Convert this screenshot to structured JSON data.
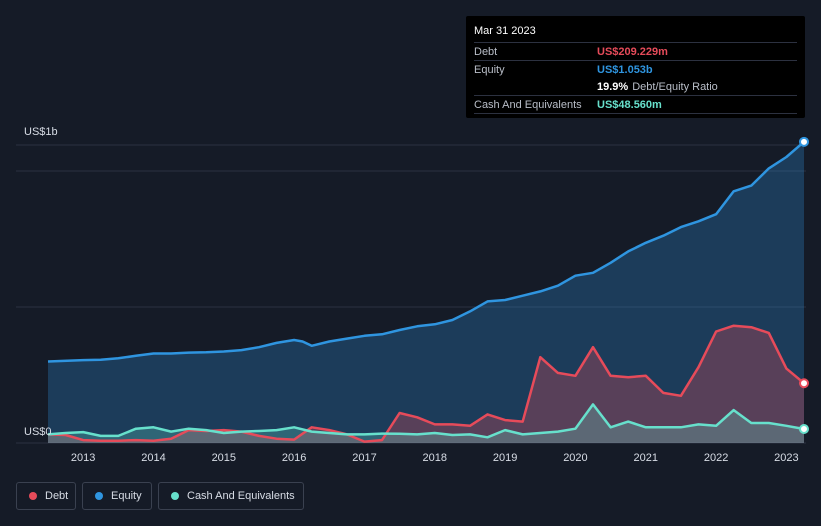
{
  "tooltip": {
    "date": "Mar 31 2023",
    "debt_label": "Debt",
    "debt_value": "US$209.229m",
    "equity_label": "Equity",
    "equity_value": "US$1.053b",
    "ratio_value": "19.9%",
    "ratio_label": "Debt/Equity Ratio",
    "cash_label": "Cash And Equivalents",
    "cash_value": "US$48.560m"
  },
  "legend": {
    "debt": "Debt",
    "equity": "Equity",
    "cash": "Cash And Equivalents"
  },
  "colors": {
    "background": "#151b27",
    "debt": "#e64b5a",
    "equity": "#2f95e0",
    "cash": "#67e0cc",
    "grid": "#2a3140"
  },
  "chart_data": {
    "type": "area",
    "y_unit": "US$ millions",
    "ylim": [
      0,
      1100
    ],
    "y_ticks": [
      {
        "value": 1000,
        "label": "US$1b"
      },
      {
        "value": 0,
        "label": "US$0"
      }
    ],
    "xlim": [
      2012.5,
      2023.25
    ],
    "x_ticks": [
      2013,
      2014,
      2015,
      2016,
      2017,
      2018,
      2019,
      2020,
      2021,
      2022,
      2023
    ],
    "x_tick_labels": [
      "2013",
      "2014",
      "2015",
      "2016",
      "2017",
      "2018",
      "2019",
      "2020",
      "2021",
      "2022",
      "2023"
    ],
    "grid": true,
    "legend_position": "bottom-left",
    "series": [
      {
        "name": "Equity",
        "points": [
          [
            2012.5,
            285
          ],
          [
            2013.0,
            290
          ],
          [
            2013.25,
            291
          ],
          [
            2013.5,
            296
          ],
          [
            2013.75,
            305
          ],
          [
            2014.0,
            313
          ],
          [
            2014.25,
            313
          ],
          [
            2014.5,
            316
          ],
          [
            2014.75,
            317
          ],
          [
            2015.0,
            320
          ],
          [
            2015.25,
            325
          ],
          [
            2015.5,
            335
          ],
          [
            2015.75,
            350
          ],
          [
            2016.0,
            360
          ],
          [
            2016.12,
            355
          ],
          [
            2016.25,
            340
          ],
          [
            2016.5,
            355
          ],
          [
            2016.75,
            365
          ],
          [
            2017.0,
            375
          ],
          [
            2017.25,
            380
          ],
          [
            2017.5,
            395
          ],
          [
            2017.75,
            408
          ],
          [
            2018.0,
            415
          ],
          [
            2018.25,
            430
          ],
          [
            2018.5,
            460
          ],
          [
            2018.75,
            495
          ],
          [
            2019.0,
            500
          ],
          [
            2019.25,
            515
          ],
          [
            2019.5,
            530
          ],
          [
            2019.75,
            550
          ],
          [
            2020.0,
            585
          ],
          [
            2020.25,
            595
          ],
          [
            2020.5,
            630
          ],
          [
            2020.75,
            670
          ],
          [
            2021.0,
            700
          ],
          [
            2021.25,
            725
          ],
          [
            2021.5,
            755
          ],
          [
            2021.75,
            775
          ],
          [
            2022.0,
            800
          ],
          [
            2022.25,
            880
          ],
          [
            2022.5,
            900
          ],
          [
            2022.75,
            960
          ],
          [
            2023.0,
            1000
          ],
          [
            2023.25,
            1053
          ]
        ]
      },
      {
        "name": "Debt",
        "points": [
          [
            2012.5,
            30
          ],
          [
            2012.75,
            28
          ],
          [
            2013.0,
            10
          ],
          [
            2013.25,
            8
          ],
          [
            2013.5,
            8
          ],
          [
            2013.75,
            10
          ],
          [
            2014.0,
            8
          ],
          [
            2014.25,
            15
          ],
          [
            2014.5,
            45
          ],
          [
            2014.75,
            42
          ],
          [
            2015.0,
            45
          ],
          [
            2015.25,
            40
          ],
          [
            2015.5,
            25
          ],
          [
            2015.75,
            15
          ],
          [
            2016.0,
            12
          ],
          [
            2016.25,
            55
          ],
          [
            2016.5,
            45
          ],
          [
            2016.75,
            30
          ],
          [
            2017.0,
            5
          ],
          [
            2017.25,
            10
          ],
          [
            2017.5,
            105
          ],
          [
            2017.75,
            90
          ],
          [
            2018.0,
            65
          ],
          [
            2018.25,
            65
          ],
          [
            2018.5,
            60
          ],
          [
            2018.75,
            100
          ],
          [
            2019.0,
            80
          ],
          [
            2019.25,
            75
          ],
          [
            2019.5,
            300
          ],
          [
            2019.75,
            245
          ],
          [
            2020.0,
            235
          ],
          [
            2020.25,
            335
          ],
          [
            2020.5,
            235
          ],
          [
            2020.75,
            230
          ],
          [
            2021.0,
            235
          ],
          [
            2021.25,
            175
          ],
          [
            2021.5,
            165
          ],
          [
            2021.75,
            265
          ],
          [
            2022.0,
            390
          ],
          [
            2022.25,
            410
          ],
          [
            2022.5,
            405
          ],
          [
            2022.75,
            385
          ],
          [
            2023.0,
            260
          ],
          [
            2023.25,
            209
          ]
        ]
      },
      {
        "name": "Cash And Equivalents",
        "points": [
          [
            2012.5,
            30
          ],
          [
            2012.75,
            35
          ],
          [
            2013.0,
            38
          ],
          [
            2013.25,
            25
          ],
          [
            2013.5,
            25
          ],
          [
            2013.75,
            50
          ],
          [
            2014.0,
            55
          ],
          [
            2014.25,
            40
          ],
          [
            2014.5,
            50
          ],
          [
            2014.75,
            45
          ],
          [
            2015.0,
            35
          ],
          [
            2015.25,
            40
          ],
          [
            2015.5,
            42
          ],
          [
            2015.75,
            45
          ],
          [
            2016.0,
            55
          ],
          [
            2016.25,
            40
          ],
          [
            2016.5,
            35
          ],
          [
            2016.75,
            30
          ],
          [
            2017.0,
            30
          ],
          [
            2017.25,
            33
          ],
          [
            2017.5,
            32
          ],
          [
            2017.75,
            30
          ],
          [
            2018.0,
            35
          ],
          [
            2018.25,
            28
          ],
          [
            2018.5,
            30
          ],
          [
            2018.75,
            20
          ],
          [
            2019.0,
            45
          ],
          [
            2019.25,
            30
          ],
          [
            2019.5,
            35
          ],
          [
            2019.75,
            40
          ],
          [
            2020.0,
            50
          ],
          [
            2020.25,
            135
          ],
          [
            2020.5,
            55
          ],
          [
            2020.75,
            75
          ],
          [
            2021.0,
            55
          ],
          [
            2021.25,
            55
          ],
          [
            2021.5,
            55
          ],
          [
            2021.75,
            65
          ],
          [
            2022.0,
            60
          ],
          [
            2022.25,
            115
          ],
          [
            2022.5,
            70
          ],
          [
            2022.75,
            70
          ],
          [
            2023.0,
            60
          ],
          [
            2023.25,
            49
          ]
        ]
      }
    ]
  }
}
